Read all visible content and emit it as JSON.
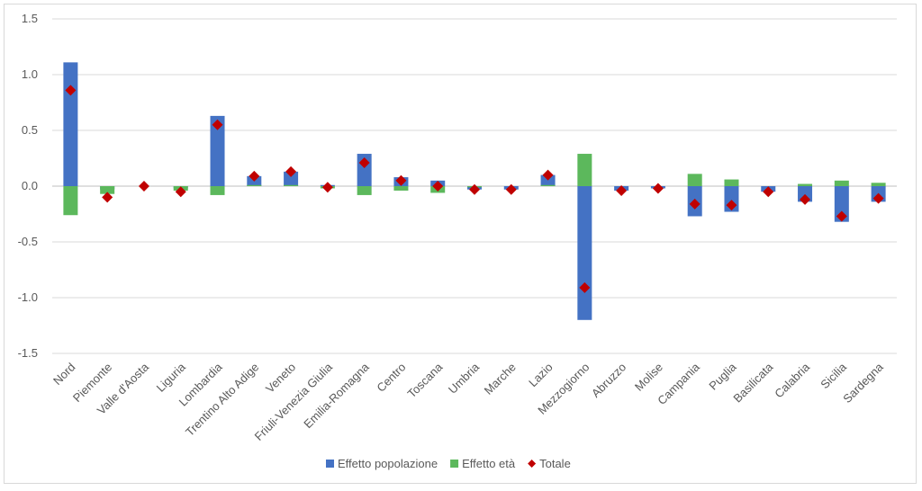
{
  "chart_data": {
    "type": "bar",
    "title": "",
    "xlabel": "",
    "ylabel": "",
    "ylim": [
      -1.5,
      1.5
    ],
    "yticks": [
      "1.5",
      "1.0",
      "0.5",
      "0.0",
      "-0.5",
      "-1.0",
      "-1.5"
    ],
    "ytick_values": [
      1.5,
      1.0,
      0.5,
      0.0,
      -0.5,
      -1.0,
      -1.5
    ],
    "grid": true,
    "legend_position": "bottom",
    "categories": [
      "Nord",
      "Piemonte",
      "Valle d'Aosta",
      "Liguria",
      "Lombardia",
      "Trentino Alto Adige",
      "Veneto",
      "Friuli-Venezia Giulia",
      "Emilia-Romagna",
      "Centro",
      "Toscana",
      "Umbria",
      "Marche",
      "Lazio",
      "Mezzogiorno",
      "Abruzzo",
      "Molise",
      "Campania",
      "Puglia",
      "Basilicata",
      "Calabria",
      "Sicilia",
      "Sardegna"
    ],
    "series": [
      {
        "name": "Effetto popolazione",
        "kind": "bar",
        "color": "#4472c4",
        "values": [
          1.11,
          -0.03,
          0.0,
          -0.02,
          0.63,
          0.09,
          0.13,
          0.01,
          0.29,
          0.08,
          0.05,
          -0.03,
          -0.03,
          0.1,
          -1.2,
          -0.04,
          -0.02,
          -0.27,
          -0.23,
          -0.05,
          -0.14,
          -0.32,
          -0.14
        ]
      },
      {
        "name": "Effetto età",
        "kind": "bar",
        "color": "#5cb85c",
        "values": [
          -0.26,
          -0.07,
          0.0,
          -0.04,
          -0.08,
          0.01,
          0.01,
          -0.02,
          -0.08,
          -0.04,
          -0.06,
          -0.01,
          0.0,
          0.01,
          0.29,
          0.0,
          0.0,
          0.11,
          0.06,
          0.0,
          0.02,
          0.05,
          0.03
        ]
      },
      {
        "name": "Totale",
        "kind": "marker",
        "color": "#c00000",
        "values": [
          0.86,
          -0.1,
          0.0,
          -0.05,
          0.55,
          0.09,
          0.13,
          -0.01,
          0.21,
          0.05,
          0.0,
          -0.03,
          -0.03,
          0.1,
          -0.91,
          -0.04,
          -0.02,
          -0.16,
          -0.17,
          -0.05,
          -0.12,
          -0.27,
          -0.11
        ]
      }
    ]
  },
  "colors": {
    "grid": "#d9d9d9",
    "axis": "#bfbfbf",
    "text": "#595959"
  }
}
